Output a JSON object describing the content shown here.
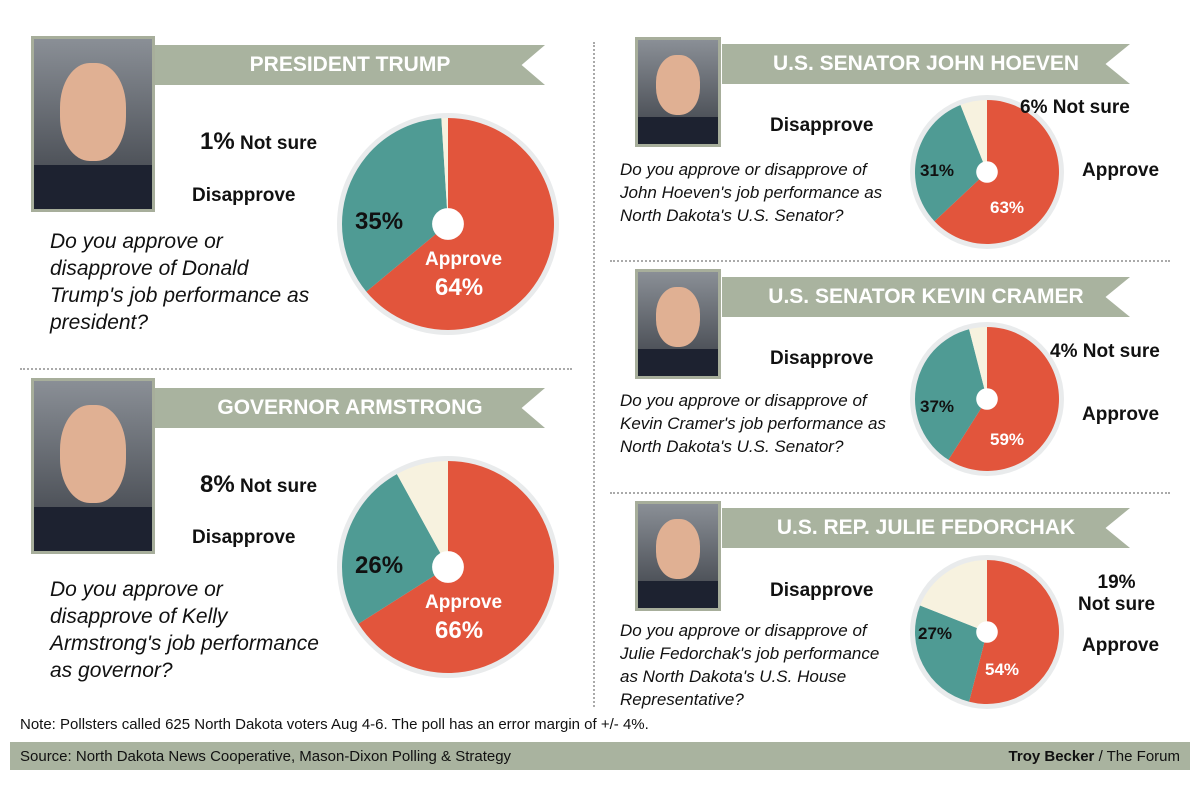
{
  "colors": {
    "approve": "#e2553c",
    "disapprove": "#4f9b94",
    "not_sure": "#f7f2df",
    "banner": "#a9b39f"
  },
  "chart_data": [
    {
      "type": "pie",
      "title": "PRESIDENT TRUMP",
      "question": "Do you approve or disapprove of Donald Trump's job performance as president?",
      "slices": [
        {
          "label": "Approve",
          "value": 64
        },
        {
          "label": "Disapprove",
          "value": 35
        },
        {
          "label": "Not sure",
          "value": 1
        }
      ],
      "value_labels": [
        "64%",
        "35%",
        "1%"
      ]
    },
    {
      "type": "pie",
      "title": "GOVERNOR ARMSTRONG",
      "question": "Do you approve or disapprove of Kelly Armstrong's job performance as governor?",
      "slices": [
        {
          "label": "Approve",
          "value": 66
        },
        {
          "label": "Disapprove",
          "value": 26
        },
        {
          "label": "Not sure",
          "value": 8
        }
      ],
      "value_labels": [
        "66%",
        "26%",
        "8%"
      ]
    },
    {
      "type": "pie",
      "title": "U.S. SENATOR JOHN HOEVEN",
      "question": "Do you approve or disapprove of John Hoeven's job performance as North Dakota's U.S. Senator?",
      "slices": [
        {
          "label": "Approve",
          "value": 63
        },
        {
          "label": "Disapprove",
          "value": 31
        },
        {
          "label": "Not sure",
          "value": 6
        }
      ],
      "value_labels": [
        "63%",
        "31%",
        "6%"
      ]
    },
    {
      "type": "pie",
      "title": "U.S. SENATOR KEVIN CRAMER",
      "question": "Do you approve or disapprove of Kevin Cramer's job performance as North Dakota's U.S. Senator?",
      "slices": [
        {
          "label": "Approve",
          "value": 59
        },
        {
          "label": "Disapprove",
          "value": 37
        },
        {
          "label": "Not sure",
          "value": 4
        }
      ],
      "value_labels": [
        "59%",
        "37%",
        "4%"
      ]
    },
    {
      "type": "pie",
      "title": "U.S. REP. JULIE FEDORCHAK",
      "question": "Do you approve or disapprove of Julie Fedorchak's job performance as North Dakota's U.S. House Representative?",
      "slices": [
        {
          "label": "Approve",
          "value": 54
        },
        {
          "label": "Disapprove",
          "value": 27
        },
        {
          "label": "Not sure",
          "value": 19
        }
      ],
      "value_labels": [
        "54%",
        "27%",
        "19%"
      ]
    }
  ],
  "note": "Note: Pollsters called 625 North Dakota voters Aug 4-6. The poll has an error margin of +/- 4%.",
  "footer": {
    "source": "Source: North Dakota News Cooperative, Mason-Dixon Polling & Strategy",
    "author": "Troy Becker",
    "outlet": " / The Forum"
  }
}
